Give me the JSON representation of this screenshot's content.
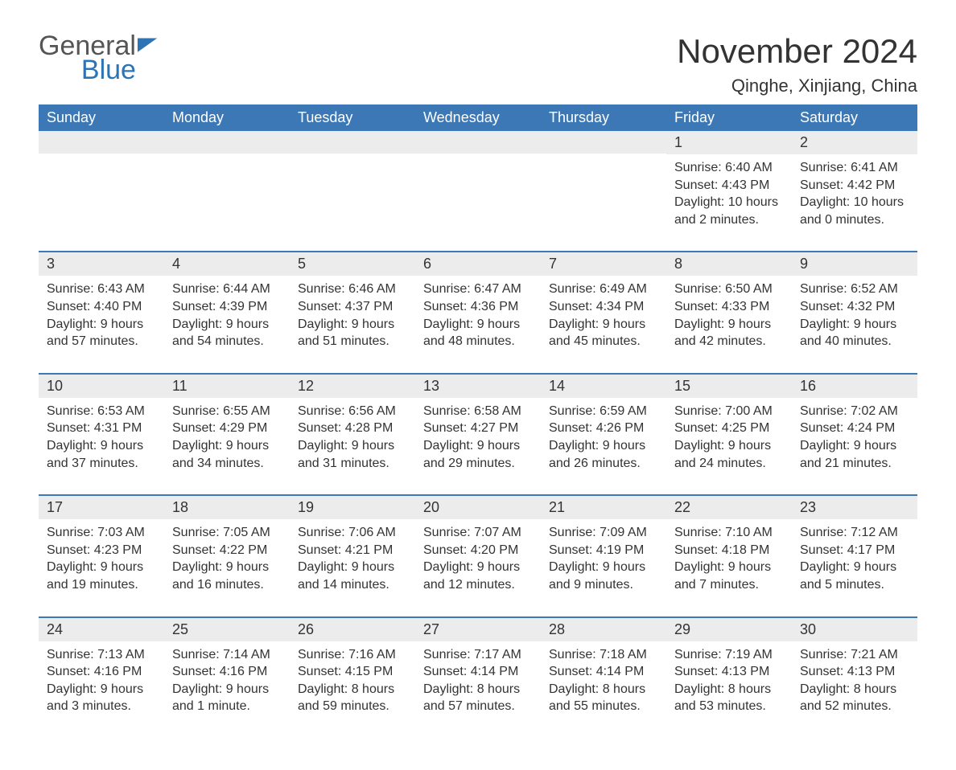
{
  "logo": {
    "text_gray": "General",
    "text_blue": "Blue"
  },
  "title": "November 2024",
  "location": "Qinghe, Xinjiang, China",
  "colors": {
    "header_bg": "#3b78b5",
    "header_text": "#ffffff",
    "daybar_bg": "#ececec",
    "daybar_border": "#3b78b5",
    "body_text": "#333333",
    "page_bg": "#ffffff",
    "logo_gray": "#555555",
    "logo_blue": "#2e74b5"
  },
  "typography": {
    "title_fontsize": 42,
    "location_fontsize": 22,
    "dow_fontsize": 18,
    "daynum_fontsize": 18,
    "body_fontsize": 16
  },
  "day_names": [
    "Sunday",
    "Monday",
    "Tuesday",
    "Wednesday",
    "Thursday",
    "Friday",
    "Saturday"
  ],
  "weeks": [
    [
      {
        "blank": true
      },
      {
        "blank": true
      },
      {
        "blank": true
      },
      {
        "blank": true
      },
      {
        "blank": true
      },
      {
        "num": "1",
        "sunrise": "Sunrise: 6:40 AM",
        "sunset": "Sunset: 4:43 PM",
        "daylight": "Daylight: 10 hours and 2 minutes."
      },
      {
        "num": "2",
        "sunrise": "Sunrise: 6:41 AM",
        "sunset": "Sunset: 4:42 PM",
        "daylight": "Daylight: 10 hours and 0 minutes."
      }
    ],
    [
      {
        "num": "3",
        "sunrise": "Sunrise: 6:43 AM",
        "sunset": "Sunset: 4:40 PM",
        "daylight": "Daylight: 9 hours and 57 minutes."
      },
      {
        "num": "4",
        "sunrise": "Sunrise: 6:44 AM",
        "sunset": "Sunset: 4:39 PM",
        "daylight": "Daylight: 9 hours and 54 minutes."
      },
      {
        "num": "5",
        "sunrise": "Sunrise: 6:46 AM",
        "sunset": "Sunset: 4:37 PM",
        "daylight": "Daylight: 9 hours and 51 minutes."
      },
      {
        "num": "6",
        "sunrise": "Sunrise: 6:47 AM",
        "sunset": "Sunset: 4:36 PM",
        "daylight": "Daylight: 9 hours and 48 minutes."
      },
      {
        "num": "7",
        "sunrise": "Sunrise: 6:49 AM",
        "sunset": "Sunset: 4:34 PM",
        "daylight": "Daylight: 9 hours and 45 minutes."
      },
      {
        "num": "8",
        "sunrise": "Sunrise: 6:50 AM",
        "sunset": "Sunset: 4:33 PM",
        "daylight": "Daylight: 9 hours and 42 minutes."
      },
      {
        "num": "9",
        "sunrise": "Sunrise: 6:52 AM",
        "sunset": "Sunset: 4:32 PM",
        "daylight": "Daylight: 9 hours and 40 minutes."
      }
    ],
    [
      {
        "num": "10",
        "sunrise": "Sunrise: 6:53 AM",
        "sunset": "Sunset: 4:31 PM",
        "daylight": "Daylight: 9 hours and 37 minutes."
      },
      {
        "num": "11",
        "sunrise": "Sunrise: 6:55 AM",
        "sunset": "Sunset: 4:29 PM",
        "daylight": "Daylight: 9 hours and 34 minutes."
      },
      {
        "num": "12",
        "sunrise": "Sunrise: 6:56 AM",
        "sunset": "Sunset: 4:28 PM",
        "daylight": "Daylight: 9 hours and 31 minutes."
      },
      {
        "num": "13",
        "sunrise": "Sunrise: 6:58 AM",
        "sunset": "Sunset: 4:27 PM",
        "daylight": "Daylight: 9 hours and 29 minutes."
      },
      {
        "num": "14",
        "sunrise": "Sunrise: 6:59 AM",
        "sunset": "Sunset: 4:26 PM",
        "daylight": "Daylight: 9 hours and 26 minutes."
      },
      {
        "num": "15",
        "sunrise": "Sunrise: 7:00 AM",
        "sunset": "Sunset: 4:25 PM",
        "daylight": "Daylight: 9 hours and 24 minutes."
      },
      {
        "num": "16",
        "sunrise": "Sunrise: 7:02 AM",
        "sunset": "Sunset: 4:24 PM",
        "daylight": "Daylight: 9 hours and 21 minutes."
      }
    ],
    [
      {
        "num": "17",
        "sunrise": "Sunrise: 7:03 AM",
        "sunset": "Sunset: 4:23 PM",
        "daylight": "Daylight: 9 hours and 19 minutes."
      },
      {
        "num": "18",
        "sunrise": "Sunrise: 7:05 AM",
        "sunset": "Sunset: 4:22 PM",
        "daylight": "Daylight: 9 hours and 16 minutes."
      },
      {
        "num": "19",
        "sunrise": "Sunrise: 7:06 AM",
        "sunset": "Sunset: 4:21 PM",
        "daylight": "Daylight: 9 hours and 14 minutes."
      },
      {
        "num": "20",
        "sunrise": "Sunrise: 7:07 AM",
        "sunset": "Sunset: 4:20 PM",
        "daylight": "Daylight: 9 hours and 12 minutes."
      },
      {
        "num": "21",
        "sunrise": "Sunrise: 7:09 AM",
        "sunset": "Sunset: 4:19 PM",
        "daylight": "Daylight: 9 hours and 9 minutes."
      },
      {
        "num": "22",
        "sunrise": "Sunrise: 7:10 AM",
        "sunset": "Sunset: 4:18 PM",
        "daylight": "Daylight: 9 hours and 7 minutes."
      },
      {
        "num": "23",
        "sunrise": "Sunrise: 7:12 AM",
        "sunset": "Sunset: 4:17 PM",
        "daylight": "Daylight: 9 hours and 5 minutes."
      }
    ],
    [
      {
        "num": "24",
        "sunrise": "Sunrise: 7:13 AM",
        "sunset": "Sunset: 4:16 PM",
        "daylight": "Daylight: 9 hours and 3 minutes."
      },
      {
        "num": "25",
        "sunrise": "Sunrise: 7:14 AM",
        "sunset": "Sunset: 4:16 PM",
        "daylight": "Daylight: 9 hours and 1 minute."
      },
      {
        "num": "26",
        "sunrise": "Sunrise: 7:16 AM",
        "sunset": "Sunset: 4:15 PM",
        "daylight": "Daylight: 8 hours and 59 minutes."
      },
      {
        "num": "27",
        "sunrise": "Sunrise: 7:17 AM",
        "sunset": "Sunset: 4:14 PM",
        "daylight": "Daylight: 8 hours and 57 minutes."
      },
      {
        "num": "28",
        "sunrise": "Sunrise: 7:18 AM",
        "sunset": "Sunset: 4:14 PM",
        "daylight": "Daylight: 8 hours and 55 minutes."
      },
      {
        "num": "29",
        "sunrise": "Sunrise: 7:19 AM",
        "sunset": "Sunset: 4:13 PM",
        "daylight": "Daylight: 8 hours and 53 minutes."
      },
      {
        "num": "30",
        "sunrise": "Sunrise: 7:21 AM",
        "sunset": "Sunset: 4:13 PM",
        "daylight": "Daylight: 8 hours and 52 minutes."
      }
    ]
  ]
}
